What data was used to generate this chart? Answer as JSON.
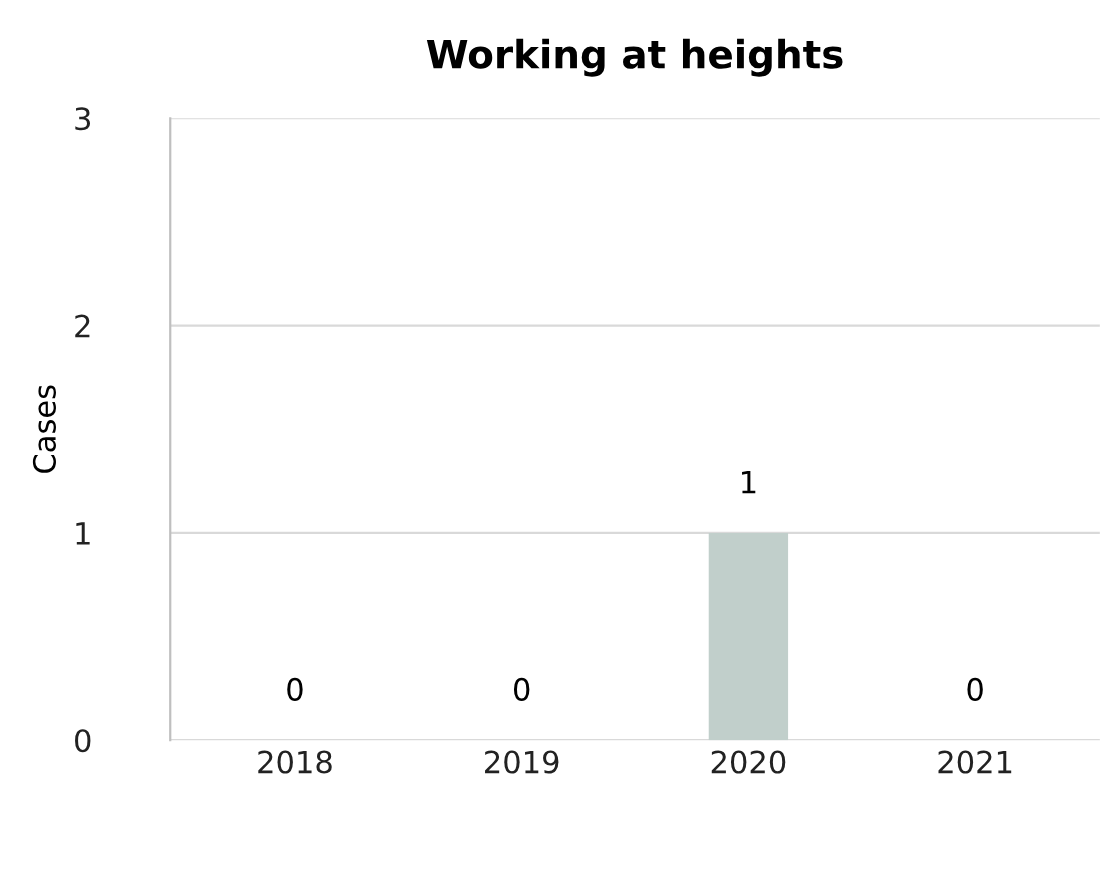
{
  "chart_data": {
    "type": "bar",
    "title": "Working at heights",
    "ylabel": "Cases",
    "categories": [
      "2018",
      "2019",
      "2020",
      "2021"
    ],
    "values": [
      0,
      0,
      1,
      0
    ],
    "color": "#c1cfcb",
    "ylim": [
      0,
      3
    ],
    "yticks": [
      0,
      1,
      2,
      3
    ],
    "grid": "y",
    "data_labels": true
  }
}
